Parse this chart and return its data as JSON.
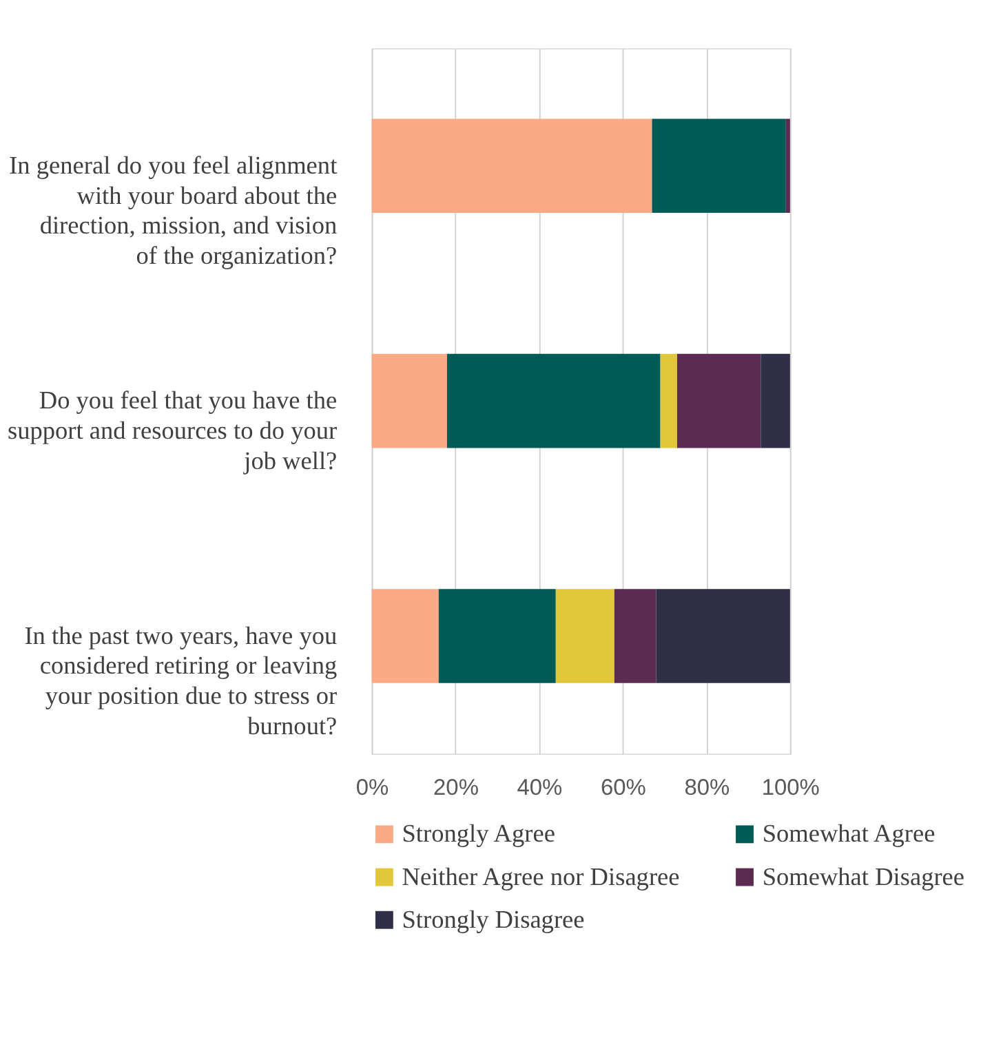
{
  "chart_data": {
    "type": "bar",
    "orientation": "horizontal",
    "stacked": true,
    "categories": [
      "In general do you feel alignment with your board about the direction, mission, and vision of the organization?",
      "Do you feel that you have the support and resources to do your job well?",
      "In the past two years, have you considered retiring or leaving your position due to stress or burnout?"
    ],
    "series": [
      {
        "name": "Strongly Agree",
        "color": "#fcaa86",
        "values": [
          67,
          18,
          16
        ]
      },
      {
        "name": "Somewhat Agree",
        "color": "#005a55",
        "values": [
          32,
          51,
          28
        ]
      },
      {
        "name": "Neither Agree nor Disagree",
        "color": "#e3c73a",
        "values": [
          0,
          4,
          14
        ]
      },
      {
        "name": "Somewhat Disagree",
        "color": "#5c2b52",
        "values": [
          1,
          20,
          10
        ]
      },
      {
        "name": "Strongly Disagree",
        "color": "#2f3048",
        "values": [
          0,
          7,
          32
        ]
      }
    ],
    "xlim": [
      0,
      100
    ],
    "xticks": [
      {
        "value": 0,
        "label": "0%"
      },
      {
        "value": 20,
        "label": "20%"
      },
      {
        "value": 40,
        "label": "40%"
      },
      {
        "value": 60,
        "label": "60%"
      },
      {
        "value": 80,
        "label": "80%"
      },
      {
        "value": 100,
        "label": "100%"
      }
    ],
    "grid": "x",
    "legend": "bottom"
  }
}
